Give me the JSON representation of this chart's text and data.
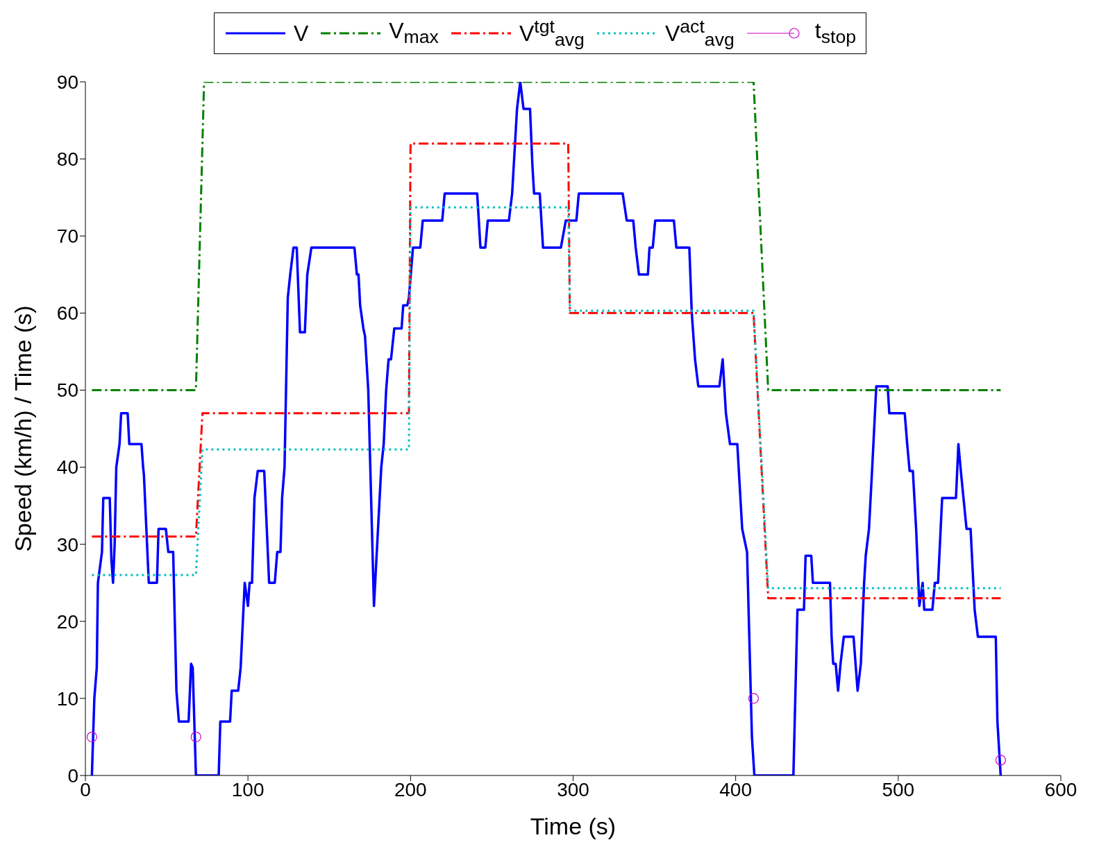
{
  "chart_data": {
    "type": "line",
    "xlabel": "Time (s)",
    "ylabel": "Speed (km/h) / Time (s)",
    "xlim": [
      0,
      600
    ],
    "xticks": [
      0,
      100,
      200,
      300,
      400,
      500,
      600
    ],
    "ylim": [
      0,
      90
    ],
    "yticks": [
      0,
      10,
      20,
      30,
      40,
      50,
      60,
      70,
      80,
      90
    ],
    "legend": "top",
    "series": [
      {
        "name": "V",
        "color": "#0000ff",
        "line_style": "solid",
        "marker": "none",
        "x": [
          4,
          5.5,
          7,
          7.7,
          10.2,
          11,
          15,
          16,
          17,
          18,
          19,
          21,
          22,
          26,
          27,
          34.5,
          35.5,
          36,
          39,
          44,
          45,
          49.5,
          51,
          54,
          56,
          57.5,
          63.5,
          65,
          66,
          68,
          82,
          83,
          89,
          90,
          94,
          95.5,
          98,
          100,
          101,
          102.5,
          104,
          106,
          110,
          112,
          113,
          116.5,
          118,
          120,
          121,
          122.5,
          124.5,
          126,
          128,
          130,
          132,
          135,
          136.5,
          139,
          165.5,
          167,
          168,
          169,
          171,
          172,
          174,
          177.5,
          182,
          183.5,
          185,
          186.5,
          188,
          190,
          194.5,
          195.5,
          198,
          199,
          201.5,
          206,
          207.5,
          219.5,
          221,
          241,
          243,
          246,
          247.5,
          260.5,
          262.5,
          265.5,
          267.5,
          269.5,
          273.5,
          275,
          276,
          279.5,
          281.5,
          292.5,
          295.5,
          302,
          303.5,
          330.5,
          333,
          337,
          338.5,
          340.5,
          346,
          347,
          349,
          350.5,
          362,
          363.5,
          371.5,
          373,
          375,
          377,
          390,
          392,
          394,
          396.5,
          401,
          404,
          407,
          410,
          411.5,
          435.5,
          438,
          442,
          443,
          446.5,
          447.5,
          458,
          459,
          460,
          461.5,
          463,
          464.5,
          466.5,
          472.5,
          475,
          477,
          479,
          480,
          482,
          484,
          486.5,
          493.5,
          494.5,
          504,
          505.5,
          507,
          509,
          511,
          513,
          515,
          516,
          521,
          522.5,
          524.5,
          527,
          535.5,
          537,
          538.5,
          542,
          544.5,
          547,
          549,
          560,
          561,
          563
        ],
        "values": [
          0,
          10,
          14,
          25,
          29,
          36,
          36,
          28,
          25,
          30,
          40,
          43,
          47,
          47,
          43,
          43,
          40,
          39,
          25,
          25,
          32,
          32,
          29,
          29,
          11,
          7,
          7,
          14.5,
          14,
          0,
          0,
          7,
          7,
          11,
          11,
          14,
          25,
          22,
          25,
          25,
          36,
          39.5,
          39.5,
          30,
          25,
          25,
          29,
          29,
          36,
          40,
          62,
          65,
          68.5,
          68.5,
          57.5,
          57.5,
          65,
          68.5,
          68.5,
          65,
          65,
          61,
          58,
          57,
          50,
          22,
          40,
          43,
          50,
          54,
          54,
          58,
          58,
          61,
          61,
          62,
          68.5,
          68.5,
          72,
          72,
          75.5,
          75.5,
          68.5,
          68.5,
          72,
          72,
          75.5,
          86.5,
          90,
          86.5,
          86.5,
          79,
          75.5,
          75.5,
          68.5,
          68.5,
          72,
          72,
          75.5,
          75.5,
          72,
          72,
          68.5,
          65,
          65,
          68.5,
          68.5,
          72,
          72,
          68.5,
          68.5,
          60,
          54,
          50.5,
          50.5,
          54,
          47,
          43,
          43,
          32,
          29,
          5,
          0,
          0,
          21.5,
          21.5,
          28.5,
          28.5,
          25,
          25,
          18,
          14.5,
          14.5,
          11,
          14.5,
          18,
          18,
          11,
          14.5,
          25,
          28.5,
          32,
          40,
          50.5,
          50.5,
          47,
          47,
          43,
          39.5,
          39.5,
          32,
          22,
          25,
          21.5,
          21.5,
          25,
          25,
          36,
          36,
          43,
          39.5,
          32,
          32,
          21.5,
          18,
          18,
          7,
          0
        ]
      },
      {
        "name": "V$_{max}$",
        "color": "#008000",
        "line_style": "dashdot",
        "marker": "none",
        "x": [
          4,
          68,
          73,
          411,
          420,
          563
        ],
        "values": [
          50,
          50,
          90,
          90,
          50,
          50
        ]
      },
      {
        "name": "V$^{tgt}$$_{avg}$",
        "color": "#ff0000",
        "line_style": "dashdot",
        "marker": "none",
        "x": [
          4,
          68,
          72,
          199,
          200,
          297,
          298,
          411,
          420,
          563
        ],
        "values": [
          31,
          31,
          47,
          47,
          82,
          82,
          60,
          60,
          23,
          23
        ]
      },
      {
        "name": "V$^{act}$$_{avg}$",
        "color": "#00c0c0",
        "line_style": "dotted",
        "marker": "none",
        "x": [
          4,
          68,
          72,
          199,
          200,
          297,
          298,
          411,
          420,
          563
        ],
        "values": [
          26,
          26,
          42.3,
          42.3,
          73.7,
          73.7,
          60.3,
          60.3,
          24.3,
          24.3
        ]
      },
      {
        "name": "t$_{stop}$",
        "type": "scatter",
        "color": "#cc00cc",
        "marker": "circle",
        "x": [
          4,
          68,
          411,
          563
        ],
        "values": [
          5,
          5,
          10,
          2
        ]
      }
    ]
  }
}
